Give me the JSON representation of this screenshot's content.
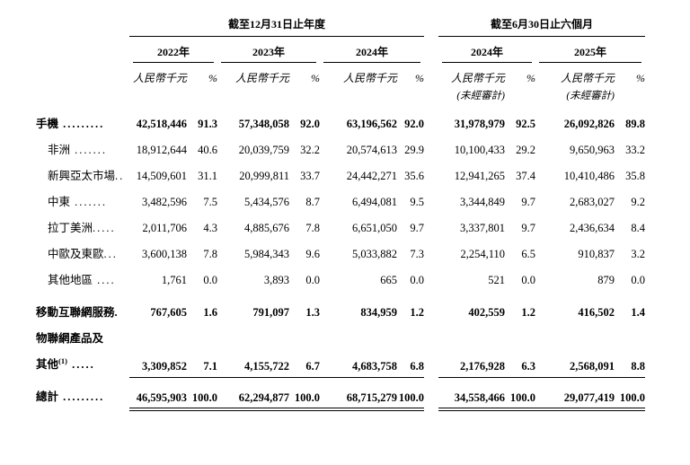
{
  "page": {
    "background_color": "#ffffff",
    "text_color": "#000000"
  },
  "table": {
    "header": {
      "annual_period_title": "截至12月31日止年度",
      "interim_period_title": "截至6月30日止六個月",
      "annual_years": [
        "2022年",
        "2023年",
        "2024年"
      ],
      "interim_years": [
        "2024年",
        "2025年"
      ],
      "currency_label": "人民幣千元",
      "percent_label": "%",
      "unaudited_label": "(未經審計)"
    },
    "rows": [
      {
        "label": "手機",
        "leader": " .........",
        "indent": false,
        "bold": true,
        "values": [
          "42,518,446",
          "91.3",
          "57,348,058",
          "92.0",
          "63,196,562",
          "92.0",
          "31,978,979",
          "92.5",
          "26,092,826",
          "89.8"
        ]
      },
      {
        "label": "非洲",
        "leader": " .......",
        "indent": true,
        "bold": false,
        "values": [
          "18,912,644",
          "40.6",
          "20,039,759",
          "32.2",
          "20,574,613",
          "29.9",
          "10,100,433",
          "29.2",
          "9,650,963",
          "33.2"
        ]
      },
      {
        "label": "新興亞太市場",
        "leader": "..",
        "indent": true,
        "bold": false,
        "values": [
          "14,509,601",
          "31.1",
          "20,999,811",
          "33.7",
          "24,442,271",
          "35.6",
          "12,941,265",
          "37.4",
          "10,410,486",
          "35.8"
        ]
      },
      {
        "label": "中東",
        "leader": " .......",
        "indent": true,
        "bold": false,
        "values": [
          "3,482,596",
          "7.5",
          "5,434,576",
          "8.7",
          "6,494,081",
          "9.5",
          "3,344,849",
          "9.7",
          "2,683,027",
          "9.2"
        ]
      },
      {
        "label": "拉丁美洲",
        "leader": ".....",
        "indent": true,
        "bold": false,
        "values": [
          "2,011,706",
          "4.3",
          "4,885,676",
          "7.8",
          "6,651,050",
          "9.7",
          "3,337,801",
          "9.7",
          "2,436,634",
          "8.4"
        ]
      },
      {
        "label": "中歐及東歐",
        "leader": "...",
        "indent": true,
        "bold": false,
        "values": [
          "3,600,138",
          "7.8",
          "5,984,343",
          "9.6",
          "5,033,882",
          "7.3",
          "2,254,110",
          "6.5",
          "910,837",
          "3.2"
        ]
      },
      {
        "label": "其他地區",
        "leader": " ....",
        "indent": true,
        "bold": false,
        "values": [
          "1,761",
          "0.0",
          "3,893",
          "0.0",
          "665",
          "0.0",
          "521",
          "0.0",
          "879",
          "0.0"
        ]
      },
      {
        "label": "移動互聯網服務",
        "leader": ".",
        "indent": false,
        "bold": true,
        "space_before": true,
        "values": [
          "767,605",
          "1.6",
          "791,097",
          "1.3",
          "834,959",
          "1.2",
          "402,559",
          "1.2",
          "416,502",
          "1.4"
        ]
      },
      {
        "label": "物聯網產品及",
        "leader": "",
        "indent": false,
        "bold": true,
        "values": null
      },
      {
        "label": "其他",
        "sup": "(1)",
        "leader": " .....",
        "indent": false,
        "bold": true,
        "rule_below": true,
        "values": [
          "3,309,852",
          "7.1",
          "4,155,722",
          "6.7",
          "4,683,758",
          "6.8",
          "2,176,928",
          "6.3",
          "2,568,091",
          "8.8"
        ]
      },
      {
        "label": "總計",
        "leader": " .........",
        "indent": false,
        "bold": true,
        "total": true,
        "space_before": true,
        "values": [
          "46,595,903",
          "100.0",
          "62,294,877",
          "100.0",
          "68,715,279",
          "100.0",
          "34,558,466",
          "100.0",
          "29,077,419",
          "100.0"
        ]
      }
    ]
  }
}
